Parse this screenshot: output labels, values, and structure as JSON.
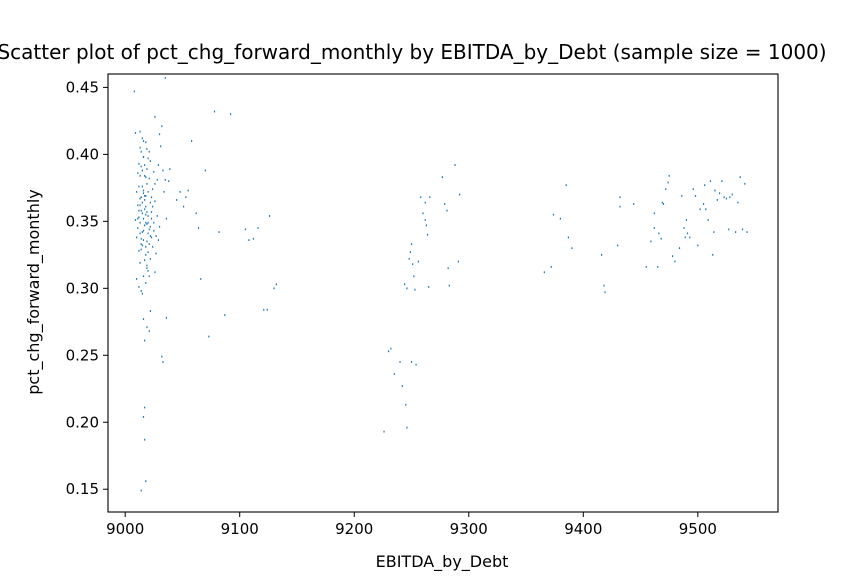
{
  "chart_data": {
    "type": "scatter",
    "title": "Scatter plot of pct_chg_forward_monthly by EBITDA_by_Debt (sample size = 1000)",
    "xlabel": "EBITDA_by_Debt",
    "ylabel": "pct_chg_forward_monthly",
    "xlim": [
      8985,
      9570
    ],
    "ylim": [
      0.133,
      0.46
    ],
    "xticks": [
      9000,
      9100,
      9200,
      9300,
      9400,
      9500
    ],
    "yticks": [
      0.15,
      0.2,
      0.25,
      0.3,
      0.35,
      0.4,
      0.45
    ],
    "xtick_labels": [
      "9000",
      "9100",
      "9200",
      "9300",
      "9400",
      "9500"
    ],
    "ytick_labels": [
      "0.15",
      "0.20",
      "0.25",
      "0.30",
      "0.35",
      "0.40",
      "0.45"
    ],
    "grid": false,
    "color": "#1f77b4",
    "points": [
      [
        9008,
        0.447
      ],
      [
        9035,
        0.457
      ],
      [
        9014,
        0.149
      ],
      [
        9018,
        0.156
      ],
      [
        9017,
        0.187
      ],
      [
        9017,
        0.211
      ],
      [
        9016,
        0.204
      ],
      [
        9019,
        0.271
      ],
      [
        9016,
        0.277
      ],
      [
        9017,
        0.261
      ],
      [
        9021,
        0.268
      ],
      [
        9022,
        0.283
      ],
      [
        9036,
        0.278
      ],
      [
        9032,
        0.249
      ],
      [
        9033,
        0.245
      ],
      [
        9010,
        0.307
      ],
      [
        9014,
        0.298
      ],
      [
        9012,
        0.328
      ],
      [
        9015,
        0.342
      ],
      [
        9018,
        0.355
      ],
      [
        9013,
        0.362
      ],
      [
        9016,
        0.371
      ],
      [
        9019,
        0.348
      ],
      [
        9014,
        0.337
      ],
      [
        9011,
        0.352
      ],
      [
        9017,
        0.366
      ],
      [
        9020,
        0.341
      ],
      [
        9015,
        0.332
      ],
      [
        9013,
        0.319
      ],
      [
        9018,
        0.325
      ],
      [
        9016,
        0.309
      ],
      [
        9019,
        0.315
      ],
      [
        9012,
        0.376
      ],
      [
        9017,
        0.384
      ],
      [
        9014,
        0.391
      ],
      [
        9019,
        0.389
      ],
      [
        9016,
        0.398
      ],
      [
        9013,
        0.405
      ],
      [
        9018,
        0.409
      ],
      [
        9021,
        0.402
      ],
      [
        9015,
        0.412
      ],
      [
        9022,
        0.395
      ],
      [
        9024,
        0.374
      ],
      [
        9026,
        0.365
      ],
      [
        9023,
        0.357
      ],
      [
        9025,
        0.349
      ],
      [
        9027,
        0.339
      ],
      [
        9024,
        0.331
      ],
      [
        9022,
        0.322
      ],
      [
        9026,
        0.312
      ],
      [
        9028,
        0.381
      ],
      [
        9029,
        0.392
      ],
      [
        9030,
        0.415
      ],
      [
        9032,
        0.421
      ],
      [
        9031,
        0.406
      ],
      [
        9028,
        0.354
      ],
      [
        9030,
        0.346
      ],
      [
        9029,
        0.336
      ],
      [
        9027,
        0.326
      ],
      [
        9033,
        0.388
      ],
      [
        9034,
        0.372
      ],
      [
        9035,
        0.381
      ],
      [
        9036,
        0.352
      ],
      [
        9011,
        0.345
      ],
      [
        9012,
        0.353
      ],
      [
        9013,
        0.341
      ],
      [
        9014,
        0.358
      ],
      [
        9015,
        0.364
      ],
      [
        9016,
        0.352
      ],
      [
        9017,
        0.347
      ],
      [
        9018,
        0.361
      ],
      [
        9019,
        0.357
      ],
      [
        9020,
        0.349
      ],
      [
        9021,
        0.344
      ],
      [
        9022,
        0.339
      ],
      [
        9023,
        0.338
      ],
      [
        9014,
        0.329
      ],
      [
        9016,
        0.336
      ],
      [
        9018,
        0.331
      ],
      [
        9020,
        0.327
      ],
      [
        9015,
        0.376
      ],
      [
        9017,
        0.369
      ],
      [
        9019,
        0.378
      ],
      [
        9021,
        0.382
      ],
      [
        9023,
        0.368
      ],
      [
        9013,
        0.384
      ],
      [
        9011,
        0.362
      ],
      [
        9010,
        0.338
      ],
      [
        9009,
        0.351
      ],
      [
        9012,
        0.301
      ],
      [
        9015,
        0.296
      ],
      [
        9018,
        0.304
      ],
      [
        9020,
        0.313
      ],
      [
        9009,
        0.416
      ],
      [
        9013,
        0.417
      ],
      [
        9016,
        0.398
      ],
      [
        9019,
        0.404
      ],
      [
        9022,
        0.364
      ],
      [
        9025,
        0.387
      ],
      [
        9024,
        0.361
      ],
      [
        9026,
        0.378
      ],
      [
        9012,
        0.393
      ],
      [
        9011,
        0.386
      ],
      [
        9010,
        0.372
      ],
      [
        9013,
        0.349
      ],
      [
        9016,
        0.343
      ],
      [
        9014,
        0.333
      ],
      [
        9017,
        0.321
      ],
      [
        9019,
        0.317
      ],
      [
        9021,
        0.309
      ],
      [
        9015,
        0.356
      ],
      [
        9018,
        0.349
      ],
      [
        9020,
        0.354
      ],
      [
        9022,
        0.346
      ],
      [
        9023,
        0.352
      ],
      [
        9025,
        0.343
      ],
      [
        9014,
        0.368
      ],
      [
        9016,
        0.373
      ],
      [
        9018,
        0.369
      ],
      [
        9020,
        0.372
      ],
      [
        9017,
        0.359
      ],
      [
        9019,
        0.335
      ],
      [
        9021,
        0.333
      ],
      [
        9012,
        0.358
      ],
      [
        9013,
        0.367
      ],
      [
        9015,
        0.388
      ],
      [
        9017,
        0.392
      ],
      [
        9018,
        0.383
      ],
      [
        9014,
        0.402
      ],
      [
        9016,
        0.41
      ],
      [
        9020,
        0.397
      ],
      [
        9026,
        0.428
      ],
      [
        9038,
        0.38
      ],
      [
        9039,
        0.389
      ],
      [
        9045,
        0.366
      ],
      [
        9048,
        0.372
      ],
      [
        9051,
        0.361
      ],
      [
        9053,
        0.368
      ],
      [
        9055,
        0.373
      ],
      [
        9058,
        0.41
      ],
      [
        9062,
        0.356
      ],
      [
        9064,
        0.345
      ],
      [
        9066,
        0.307
      ],
      [
        9070,
        0.388
      ],
      [
        9073,
        0.264
      ],
      [
        9078,
        0.432
      ],
      [
        9082,
        0.342
      ],
      [
        9087,
        0.28
      ],
      [
        9092,
        0.43
      ],
      [
        9105,
        0.344
      ],
      [
        9108,
        0.336
      ],
      [
        9112,
        0.337
      ],
      [
        9116,
        0.345
      ],
      [
        9121,
        0.284
      ],
      [
        9124,
        0.284
      ],
      [
        9126,
        0.354
      ],
      [
        9130,
        0.3
      ],
      [
        9132,
        0.303
      ],
      [
        9226,
        0.193
      ],
      [
        9230,
        0.253
      ],
      [
        9232,
        0.255
      ],
      [
        9235,
        0.236
      ],
      [
        9240,
        0.245
      ],
      [
        9242,
        0.227
      ],
      [
        9245,
        0.213
      ],
      [
        9246,
        0.196
      ],
      [
        9244,
        0.303
      ],
      [
        9246,
        0.3
      ],
      [
        9248,
        0.322
      ],
      [
        9249,
        0.327
      ],
      [
        9250,
        0.333
      ],
      [
        9251,
        0.318
      ],
      [
        9252,
        0.309
      ],
      [
        9253,
        0.299
      ],
      [
        9250,
        0.245
      ],
      [
        9254,
        0.243
      ],
      [
        9256,
        0.32
      ],
      [
        9258,
        0.368
      ],
      [
        9260,
        0.356
      ],
      [
        9262,
        0.364
      ],
      [
        9262,
        0.351
      ],
      [
        9263,
        0.347
      ],
      [
        9264,
        0.34
      ],
      [
        9265,
        0.301
      ],
      [
        9266,
        0.368
      ],
      [
        9277,
        0.383
      ],
      [
        9279,
        0.363
      ],
      [
        9281,
        0.358
      ],
      [
        9282,
        0.315
      ],
      [
        9283,
        0.302
      ],
      [
        9288,
        0.392
      ],
      [
        9291,
        0.32
      ],
      [
        9292,
        0.37
      ],
      [
        9366,
        0.312
      ],
      [
        9372,
        0.316
      ],
      [
        9374,
        0.355
      ],
      [
        9380,
        0.352
      ],
      [
        9385,
        0.377
      ],
      [
        9387,
        0.338
      ],
      [
        9390,
        0.33
      ],
      [
        9416,
        0.325
      ],
      [
        9418,
        0.302
      ],
      [
        9419,
        0.297
      ],
      [
        9430,
        0.332
      ],
      [
        9432,
        0.368
      ],
      [
        9432,
        0.361
      ],
      [
        9444,
        0.363
      ],
      [
        9455,
        0.316
      ],
      [
        9459,
        0.335
      ],
      [
        9462,
        0.345
      ],
      [
        9462,
        0.356
      ],
      [
        9465,
        0.316
      ],
      [
        9466,
        0.341
      ],
      [
        9468,
        0.337
      ],
      [
        9469,
        0.364
      ],
      [
        9470,
        0.363
      ],
      [
        9472,
        0.374
      ],
      [
        9474,
        0.379
      ],
      [
        9475,
        0.384
      ],
      [
        9478,
        0.324
      ],
      [
        9480,
        0.32
      ],
      [
        9484,
        0.33
      ],
      [
        9486,
        0.369
      ],
      [
        9488,
        0.345
      ],
      [
        9489,
        0.338
      ],
      [
        9490,
        0.351
      ],
      [
        9491,
        0.341
      ],
      [
        9493,
        0.338
      ],
      [
        9496,
        0.374
      ],
      [
        9498,
        0.369
      ],
      [
        9500,
        0.332
      ],
      [
        9502,
        0.359
      ],
      [
        9505,
        0.363
      ],
      [
        9506,
        0.377
      ],
      [
        9507,
        0.359
      ],
      [
        9509,
        0.351
      ],
      [
        9511,
        0.38
      ],
      [
        9513,
        0.325
      ],
      [
        9514,
        0.342
      ],
      [
        9515,
        0.373
      ],
      [
        9517,
        0.366
      ],
      [
        9519,
        0.371
      ],
      [
        9521,
        0.38
      ],
      [
        9523,
        0.368
      ],
      [
        9525,
        0.367
      ],
      [
        9527,
        0.344
      ],
      [
        9528,
        0.368
      ],
      [
        9530,
        0.37
      ],
      [
        9533,
        0.342
      ],
      [
        9535,
        0.364
      ],
      [
        9537,
        0.383
      ],
      [
        9539,
        0.344
      ],
      [
        9541,
        0.378
      ],
      [
        9543,
        0.342
      ]
    ]
  }
}
